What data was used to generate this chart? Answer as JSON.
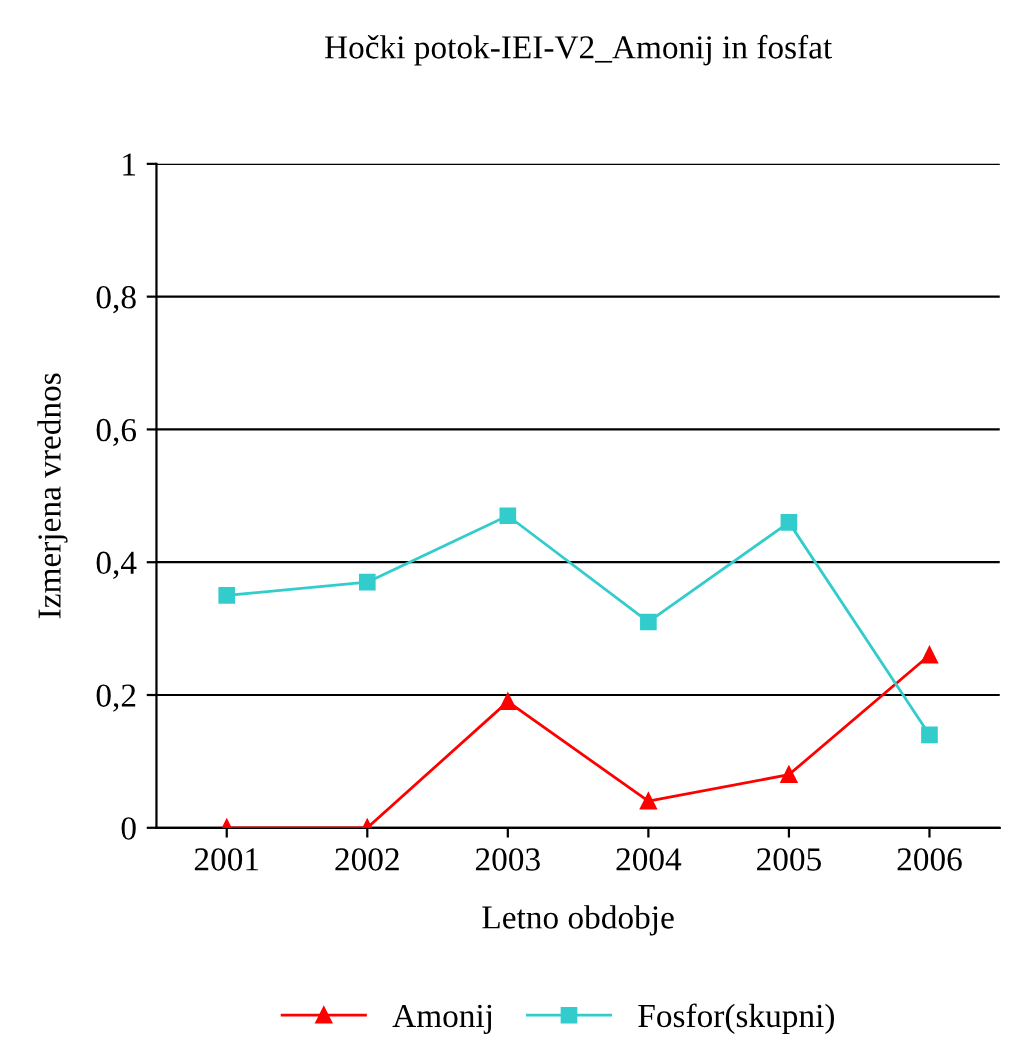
{
  "chart_data": {
    "type": "line",
    "title": "Hočki potok-IEI-V2_Amonij in fosfat",
    "xlabel": "Letno obdobje",
    "ylabel": "Izmerjena vrednos",
    "categories": [
      "2001",
      "2002",
      "2003",
      "2004",
      "2005",
      "2006"
    ],
    "series": [
      {
        "name": "Amonij",
        "color": "#ff0000",
        "marker": "triangle",
        "values": [
          0,
          0,
          0.19,
          0.04,
          0.08,
          0.26
        ]
      },
      {
        "name": "Fosfor(skupni)",
        "color": "#33cccc",
        "marker": "square",
        "values": [
          0.35,
          0.37,
          0.47,
          0.31,
          0.46,
          0.14
        ]
      }
    ],
    "ylim": [
      0,
      1
    ],
    "yticks": [
      0,
      {
        "value": 0.2,
        "label": "0,2"
      },
      {
        "value": 0.4,
        "label": "0,4"
      },
      {
        "value": 0.6,
        "label": "0,6"
      },
      {
        "value": 0.8,
        "label": "0,8"
      },
      1
    ],
    "grid": "y",
    "legend": "bottom",
    "line_style": "solid"
  }
}
